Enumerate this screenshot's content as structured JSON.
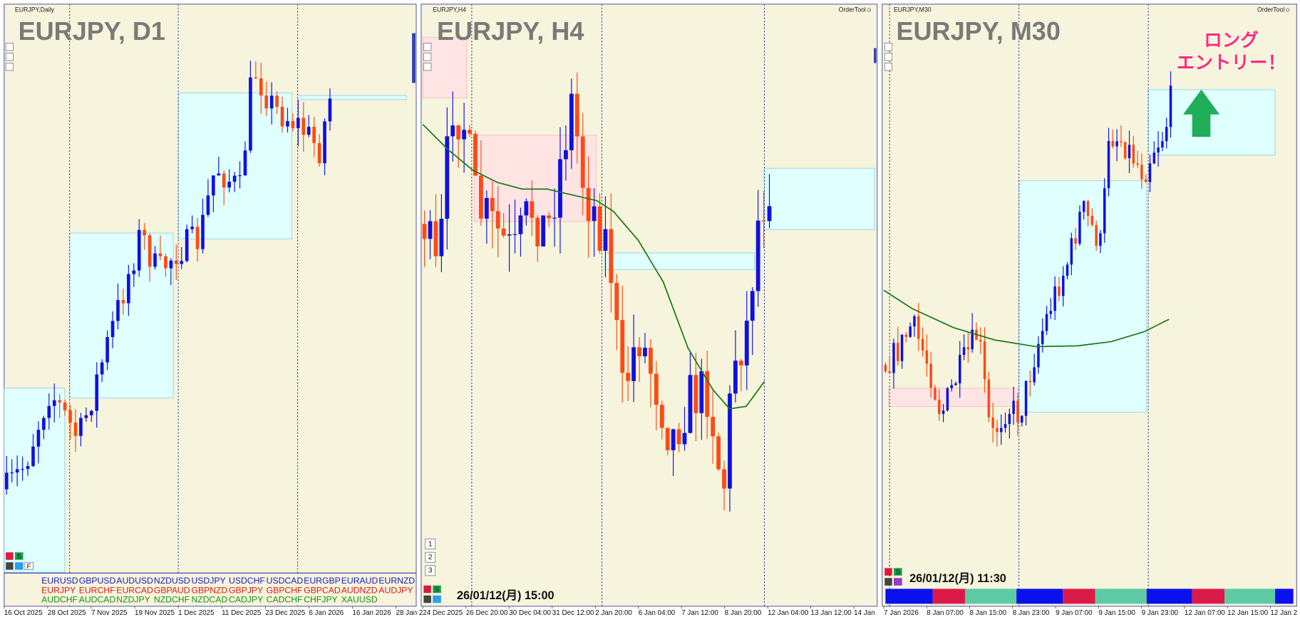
{
  "panels": [
    {
      "title": "EURJPY,Daily",
      "symbol_label": "EURJPY, D1",
      "time_axis": [
        "16 Oct 2025",
        "28 Oct 2025",
        "7 Nov 2025",
        "19 Nov 2025",
        "1 Dec 2025",
        "11 Dec 2025",
        "23 Dec 2025",
        "6 Jan 2026",
        "16 Jan 2026",
        "28 Jan 2"
      ],
      "symbols": [
        [
          "EURUSD",
          "GBPUSD",
          "AUDUSD",
          "NZDUSD",
          "USDJPY",
          "USDCHF",
          "USDCAD",
          "EURGBP",
          "EURAUD",
          "EURNZD"
        ],
        [
          "EURJPY",
          "EURCHF",
          "EURCAD",
          "GBPAUD",
          "GBPNZD",
          "GBPJPY",
          "GBPCHF",
          "GBPCAD",
          "AUDNZD",
          "AUDJPY"
        ],
        [
          "AUDCHF",
          "AUDCAD",
          "NZDJPY",
          "NZDCHF",
          "NZDCAD",
          "CADJPY",
          "CADCHF",
          "CHFJPY",
          "XAUUSD"
        ]
      ],
      "buttons": [
        "S",
        "F"
      ]
    },
    {
      "title": "EURJPY,H4",
      "symbol_label": "EURJPY, H4",
      "order_tool": "OrderTool☺",
      "time_axis": [
        "24 Dec 2025",
        "26 Dec 20:00",
        "30 Dec 04:00",
        "31 Dec 12:00",
        "2 Jan 20:00",
        "6 Jan 04:00",
        "7 Jan 12:00",
        "8 Jan 20:00",
        "12 Jan 04:00",
        "13 Jan 12:00",
        "14 Jan"
      ],
      "timestamp": "26/01/12(月) 15:00",
      "buttons": [
        "1",
        "2",
        "3",
        "S"
      ]
    },
    {
      "title": "EURJPY,M30",
      "symbol_label": "EURJPY, M30",
      "order_tool": "OrderTool☺",
      "time_axis": [
        "7 Jan 2026",
        "8 Jan 07:00",
        "8 Jan 15:00",
        "8 Jan 23:00",
        "9 Jan 07:00",
        "9 Jan 15:00",
        "9 Jan 23:00",
        "12 Jan 07:00",
        "12 Jan 15:00",
        "12 Jan 2"
      ],
      "timestamp": "26/01/12(月) 11:30",
      "buttons": [
        "S"
      ],
      "annotation": [
        "ロング",
        "エントリー！"
      ]
    }
  ]
}
